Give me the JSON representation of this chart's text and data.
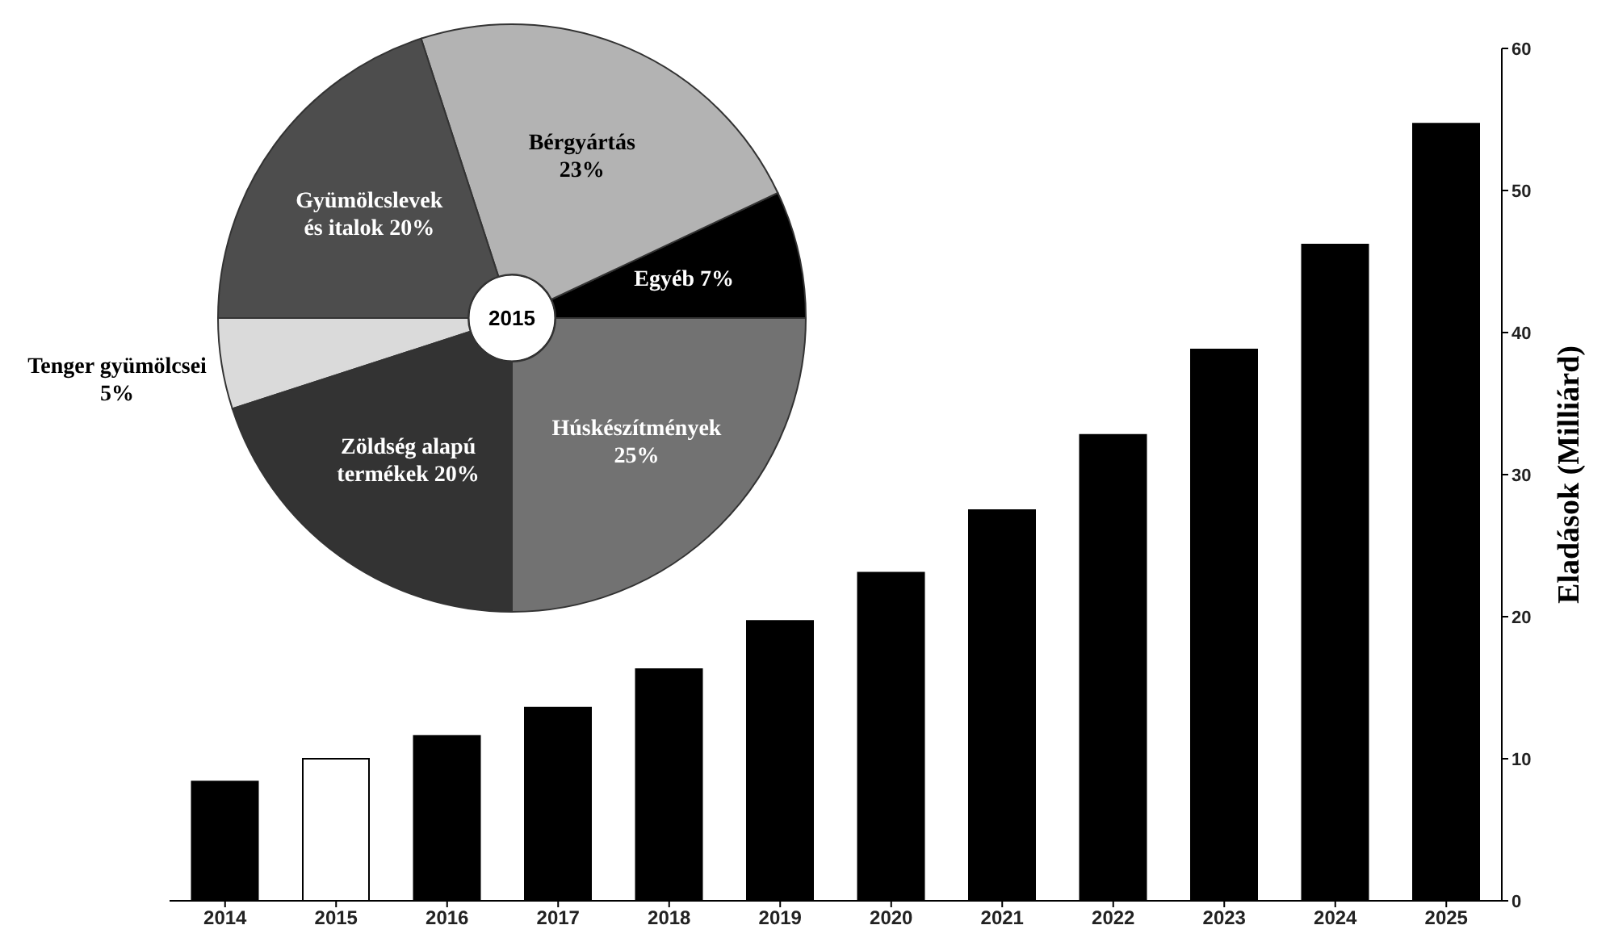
{
  "chart_data": [
    {
      "type": "bar",
      "categories": [
        "2014",
        "2015",
        "2016",
        "2017",
        "2018",
        "2019",
        "2020",
        "2021",
        "2022",
        "2023",
        "2024",
        "2025"
      ],
      "values": [
        8.4,
        10.0,
        11.6,
        13.6,
        16.3,
        19.7,
        23.1,
        27.5,
        32.8,
        38.8,
        46.2,
        54.7
      ],
      "colors": [
        "#000000",
        "#ffffff",
        "#000000",
        "#000000",
        "#000000",
        "#000000",
        "#000000",
        "#000000",
        "#000000",
        "#000000",
        "#000000",
        "#000000"
      ],
      "ylabel": "Eladások (Milliárd)",
      "ylim": [
        0,
        60
      ],
      "yticks": [
        0,
        10,
        20,
        30,
        40,
        50,
        60
      ]
    },
    {
      "type": "donut",
      "title": "2015",
      "categories": [
        "Egyéb",
        "Bérgyártás",
        "Gyümölcslevek és italok",
        "Tenger gyümölcsei",
        "Zöldség alapú termékek",
        "Húskészítmények"
      ],
      "values": [
        7,
        23,
        20,
        5,
        20,
        25
      ],
      "value_labels": [
        "7%",
        "23%",
        "20%",
        "5%",
        "20%",
        "25%"
      ],
      "colors": [
        "#000000",
        "#b3b3b3",
        "#4d4d4d",
        "#dadada",
        "#333333",
        "#727272"
      ]
    }
  ]
}
